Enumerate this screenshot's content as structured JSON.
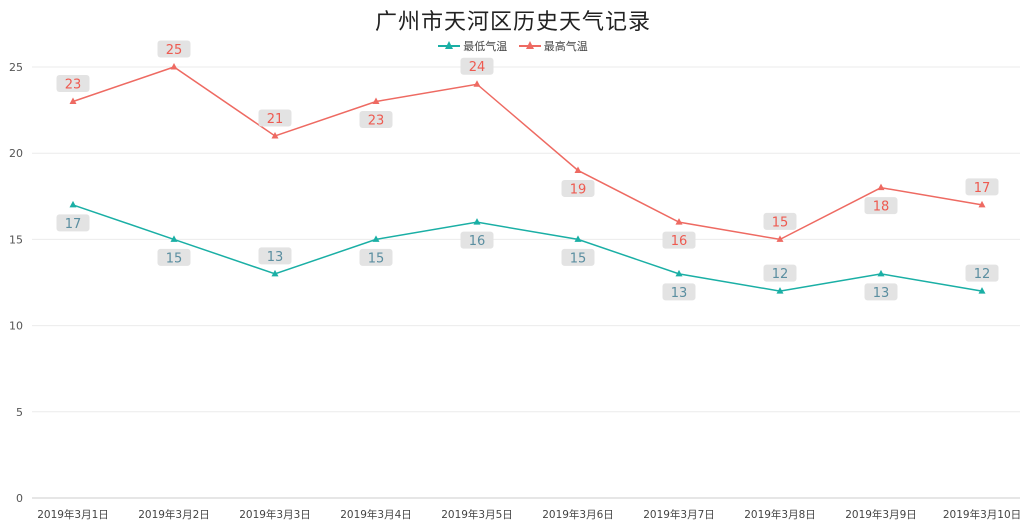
{
  "chart_data": {
    "type": "line",
    "title": "广州市天河区历史天气记录",
    "categories": [
      "2019年3月1日",
      "2019年3月2日",
      "2019年3月3日",
      "2019年3月4日",
      "2019年3月5日",
      "2019年3月6日",
      "2019年3月7日",
      "2019年3月8日",
      "2019年3月9日",
      "2019年3月10日"
    ],
    "series": [
      {
        "name": "最低气温",
        "color": "#1aafa5",
        "label_color": "#5a8ea0",
        "label_position": [
          1,
          1,
          -1,
          1,
          1,
          1,
          1,
          -1,
          1,
          -1
        ],
        "values": [
          17,
          15,
          13,
          15,
          16,
          15,
          13,
          12,
          13,
          12
        ]
      },
      {
        "name": "最高气温",
        "color": "#ee6a62",
        "label_color": "#ee5a50",
        "label_position": [
          -1,
          -1,
          -1,
          1,
          -1,
          1,
          1,
          -1,
          1,
          -1
        ],
        "values": [
          23,
          25,
          21,
          23,
          24,
          19,
          16,
          15,
          18,
          17
        ]
      }
    ],
    "yticks": [
      0,
      5,
      10,
      15,
      20,
      25
    ],
    "ylim": [
      0,
      26
    ],
    "xlabel": "",
    "ylabel": "",
    "grid": true,
    "legend": "top-center",
    "marker": "triangle",
    "label_background": "#e3e3e3"
  }
}
